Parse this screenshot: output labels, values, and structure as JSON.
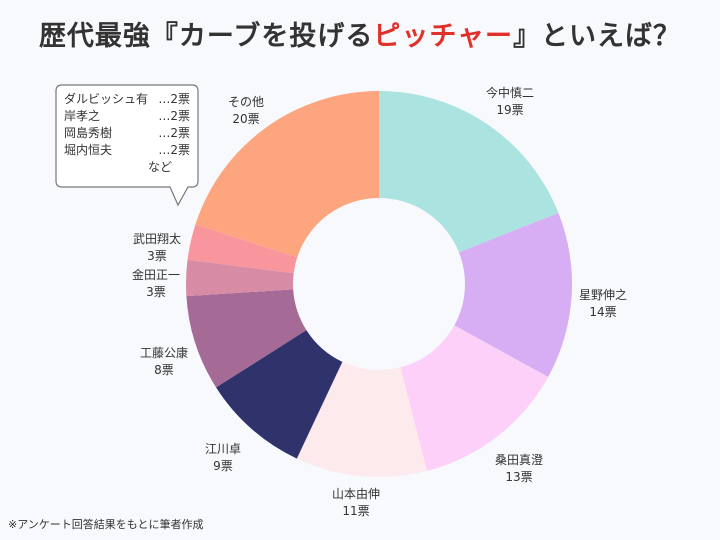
{
  "title": {
    "part1": "歴代最強『カーブを投げる",
    "highlight": "ピッチャー",
    "part2": "』といえば？"
  },
  "chart_data": {
    "type": "pie",
    "donut": true,
    "categories": [
      "今中慎二",
      "星野伸之",
      "桑田真澄",
      "山本由伸",
      "江川卓",
      "工藤公康",
      "金田正一",
      "武田翔太",
      "その他"
    ],
    "values": [
      19,
      14,
      13,
      11,
      9,
      8,
      3,
      3,
      20
    ],
    "value_labels": [
      "19票",
      "14票",
      "13票",
      "11票",
      "9票",
      "8票",
      "3票",
      "3票",
      "20票"
    ],
    "colors": [
      "#abe3e1",
      "#d7aef3",
      "#fdd0fa",
      "#fdeaed",
      "#30336b",
      "#a56b96",
      "#d78ba4",
      "#f8959d",
      "#fca57e"
    ]
  },
  "callout": {
    "lines": [
      {
        "name": "ダルビッシュ有",
        "value": "…2票"
      },
      {
        "name": "岸孝之",
        "value": "…2票"
      },
      {
        "name": "岡島秀樹",
        "value": "…2票"
      },
      {
        "name": "堀内恒夫",
        "value": "…2票"
      }
    ],
    "footer": "など"
  },
  "note": "※アンケート回答結果をもとに筆者作成"
}
